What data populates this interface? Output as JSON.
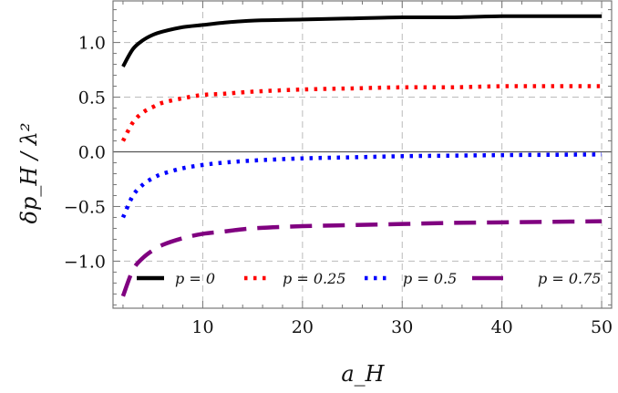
{
  "chart_data": {
    "type": "line",
    "title": "",
    "xlabel": "a_H",
    "ylabel": "δp_H / λ²",
    "xlim": [
      1,
      51
    ],
    "ylim": [
      -1.43,
      1.38
    ],
    "xticks": [
      10,
      20,
      30,
      40,
      50
    ],
    "xtick_labels": [
      "10",
      "20",
      "30",
      "40",
      "50"
    ],
    "yticks": [
      1.0,
      0.5,
      0.0,
      -0.5,
      -1.0
    ],
    "ytick_labels": [
      "1.0",
      "0.5",
      "0.0",
      "−0.5",
      "−1.0"
    ],
    "grid": true,
    "legend_position": "bottom",
    "x": [
      2,
      3,
      4,
      5,
      6,
      8,
      10,
      12,
      15,
      20,
      25,
      30,
      35,
      40,
      45,
      50
    ],
    "series": [
      {
        "name": "p = 0",
        "color": "#000000",
        "style": "solid",
        "values": [
          0.78,
          0.94,
          1.02,
          1.07,
          1.1,
          1.14,
          1.16,
          1.18,
          1.2,
          1.21,
          1.22,
          1.23,
          1.23,
          1.24,
          1.24,
          1.24
        ]
      },
      {
        "name": "p = 0.25",
        "color": "#ff0000",
        "style": "dotted",
        "values": [
          0.1,
          0.27,
          0.36,
          0.41,
          0.45,
          0.49,
          0.52,
          0.53,
          0.55,
          0.57,
          0.58,
          0.59,
          0.59,
          0.6,
          0.6,
          0.6
        ]
      },
      {
        "name": "p = 0.5",
        "color": "#0000ff",
        "style": "dotted",
        "values": [
          -0.6,
          -0.4,
          -0.3,
          -0.24,
          -0.2,
          -0.15,
          -0.12,
          -0.1,
          -0.08,
          -0.06,
          -0.05,
          -0.04,
          -0.035,
          -0.03,
          -0.027,
          -0.024
        ]
      },
      {
        "name": "p = 0.75",
        "color": "#800080",
        "style": "dashed",
        "values": [
          -1.32,
          -1.08,
          -0.97,
          -0.9,
          -0.85,
          -0.79,
          -0.75,
          -0.73,
          -0.7,
          -0.68,
          -0.67,
          -0.66,
          -0.65,
          -0.645,
          -0.64,
          -0.635
        ]
      }
    ]
  }
}
